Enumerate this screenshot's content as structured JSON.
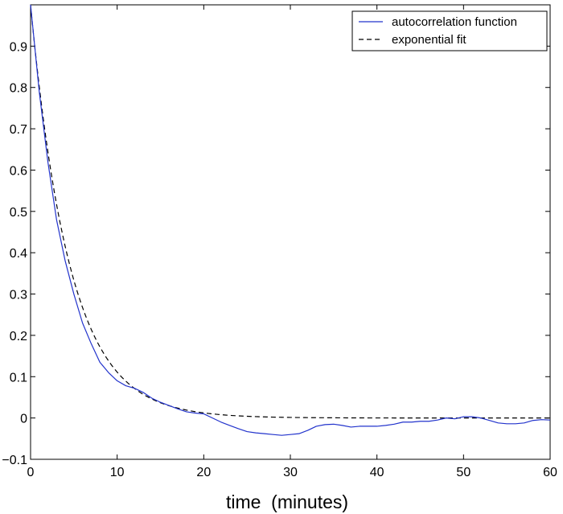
{
  "chart_data": {
    "type": "line",
    "title": "",
    "xlabel": "time  (minutes)",
    "ylabel": "",
    "xlim": [
      0,
      60
    ],
    "ylim": [
      -0.1,
      1.0
    ],
    "xticks": [
      0,
      10,
      20,
      30,
      40,
      50,
      60
    ],
    "yticks": [
      -0.1,
      0,
      0.1,
      0.2,
      0.3,
      0.4,
      0.5,
      0.6,
      0.7,
      0.8,
      0.9
    ],
    "ytick_labels": [
      "−0.1",
      "0",
      "0.1",
      "0.2",
      "0.3",
      "0.4",
      "0.5",
      "0.6",
      "0.7",
      "0.8",
      "0.9"
    ],
    "grid": false,
    "legend_position": "top-right",
    "series": [
      {
        "name": "autocorrelation function",
        "color": "#2233cc",
        "style": "solid",
        "x": [
          0,
          1,
          2,
          3,
          4,
          5,
          6,
          7,
          8,
          9,
          10,
          11,
          12,
          13,
          14,
          15,
          16,
          17,
          18,
          19,
          20,
          21,
          22,
          23,
          24,
          25,
          26,
          27,
          28,
          29,
          30,
          31,
          32,
          33,
          34,
          35,
          36,
          37,
          38,
          39,
          40,
          41,
          42,
          43,
          44,
          45,
          46,
          47,
          48,
          49,
          50,
          51,
          52,
          53,
          54,
          55,
          56,
          57,
          58,
          59,
          60
        ],
        "y": [
          1.0,
          0.79,
          0.62,
          0.48,
          0.38,
          0.3,
          0.23,
          0.18,
          0.135,
          0.11,
          0.09,
          0.078,
          0.072,
          0.062,
          0.048,
          0.038,
          0.03,
          0.022,
          0.015,
          0.012,
          0.01,
          0.0,
          -0.01,
          -0.018,
          -0.026,
          -0.033,
          -0.036,
          -0.038,
          -0.04,
          -0.042,
          -0.04,
          -0.038,
          -0.03,
          -0.02,
          -0.016,
          -0.015,
          -0.018,
          -0.022,
          -0.02,
          -0.02,
          -0.02,
          -0.018,
          -0.015,
          -0.01,
          -0.01,
          -0.008,
          -0.008,
          -0.005,
          0.0,
          -0.002,
          0.003,
          0.003,
          0.0,
          -0.006,
          -0.012,
          -0.014,
          -0.014,
          -0.012,
          -0.006,
          -0.004,
          -0.005
        ]
      },
      {
        "name": "exponential fit",
        "color": "#000000",
        "style": "dashed",
        "fit": {
          "form": "exp(-t/tau)",
          "tau": 4.55
        }
      }
    ]
  }
}
